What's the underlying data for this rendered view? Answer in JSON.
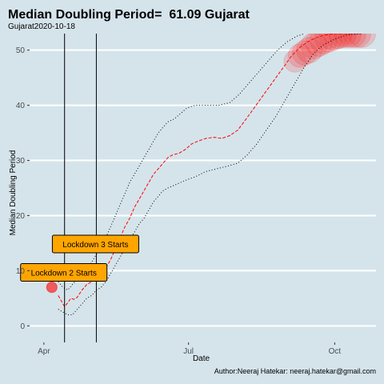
{
  "chart_data": {
    "type": "line",
    "title_prefix": "Median Doubling Period=",
    "title_value": "61.09",
    "title_region": "Gujarat",
    "subtitle": "Gujarat2020-10-18",
    "xlabel": "Date",
    "ylabel": "Median Doubling Period",
    "caption": "Author:Neeraj Hatekar: neeraj.hatekar@gmail.com",
    "x_ticks": [
      {
        "label": "Apr",
        "date": "2020-04-01"
      },
      {
        "label": "Jul",
        "date": "2020-07-01"
      },
      {
        "label": "Oct",
        "date": "2020-10-01"
      }
    ],
    "y_ticks": [
      0,
      10,
      20,
      30,
      40,
      50
    ],
    "x_range": [
      "2020-03-23",
      "2020-10-27"
    ],
    "ylim": [
      -3,
      53
    ],
    "grid": "horizontal",
    "legend": "none",
    "colors": {
      "background": "#d5e4eb",
      "median_line": "#ff0000",
      "bounds": "#000000",
      "annotation_fill": "#ffa500"
    },
    "vlines": [
      {
        "date": "2020-04-14",
        "label": "Lockdown 2 Starts"
      },
      {
        "date": "2020-05-04",
        "label": "Lockdown 3 Starts"
      }
    ],
    "series": [
      {
        "style": "dashed-red",
        "points": [
          [
            "2020-04-10",
            5.5
          ],
          [
            "2020-04-12",
            4.5
          ],
          [
            "2020-04-14",
            3.5
          ],
          [
            "2020-04-16",
            4.2
          ],
          [
            "2020-04-18",
            5.0
          ],
          [
            "2020-04-20",
            4.8
          ],
          [
            "2020-04-22",
            5.2
          ],
          [
            "2020-04-25",
            6.5
          ],
          [
            "2020-04-28",
            7.5
          ],
          [
            "2020-05-01",
            8.0
          ],
          [
            "2020-05-04",
            8.5
          ],
          [
            "2020-05-07",
            9.5
          ],
          [
            "2020-05-10",
            10.5
          ],
          [
            "2020-05-13",
            12.0
          ],
          [
            "2020-05-16",
            14.0
          ],
          [
            "2020-05-19",
            16.0
          ],
          [
            "2020-05-22",
            18.0
          ],
          [
            "2020-05-25",
            19.5
          ],
          [
            "2020-05-28",
            21.5
          ],
          [
            "2020-05-31",
            23.0
          ],
          [
            "2020-06-03",
            24.5
          ],
          [
            "2020-06-06",
            26.0
          ],
          [
            "2020-06-09",
            27.5
          ],
          [
            "2020-06-12",
            28.5
          ],
          [
            "2020-06-15",
            29.5
          ],
          [
            "2020-06-18",
            30.5
          ],
          [
            "2020-06-21",
            31.0
          ],
          [
            "2020-06-25",
            31.3
          ],
          [
            "2020-06-29",
            32.0
          ],
          [
            "2020-07-03",
            33.0
          ],
          [
            "2020-07-07",
            33.5
          ],
          [
            "2020-07-12",
            34.0
          ],
          [
            "2020-07-17",
            34.2
          ],
          [
            "2020-07-22",
            34.0
          ],
          [
            "2020-07-27",
            34.5
          ],
          [
            "2020-08-01",
            35.5
          ],
          [
            "2020-08-05",
            37.0
          ],
          [
            "2020-08-10",
            39.0
          ],
          [
            "2020-08-15",
            41.0
          ],
          [
            "2020-08-20",
            43.0
          ],
          [
            "2020-08-25",
            45.0
          ],
          [
            "2020-08-30",
            47.0
          ],
          [
            "2020-09-04",
            49.0
          ],
          [
            "2020-09-09",
            50.5
          ],
          [
            "2020-09-14",
            51.5
          ],
          [
            "2020-09-19",
            52.2
          ],
          [
            "2020-09-24",
            52.7
          ],
          [
            "2020-10-01",
            53.0
          ],
          [
            "2020-10-09",
            53.0
          ],
          [
            "2020-10-18",
            53.0
          ]
        ]
      },
      {
        "style": "dotted-black",
        "points": [
          [
            "2020-04-10",
            8.0
          ],
          [
            "2020-04-13",
            7.0
          ],
          [
            "2020-04-16",
            6.5
          ],
          [
            "2020-04-19",
            7.5
          ],
          [
            "2020-04-22",
            8.5
          ],
          [
            "2020-04-25",
            9.5
          ],
          [
            "2020-04-28",
            10.5
          ],
          [
            "2020-05-01",
            11.5
          ],
          [
            "2020-05-04",
            13.0
          ],
          [
            "2020-05-07",
            14.0
          ],
          [
            "2020-05-10",
            16.0
          ],
          [
            "2020-05-13",
            18.0
          ],
          [
            "2020-05-16",
            20.0
          ],
          [
            "2020-05-19",
            22.0
          ],
          [
            "2020-05-22",
            24.0
          ],
          [
            "2020-05-25",
            26.0
          ],
          [
            "2020-05-28",
            27.5
          ],
          [
            "2020-05-31",
            29.0
          ],
          [
            "2020-06-03",
            30.5
          ],
          [
            "2020-06-06",
            32.0
          ],
          [
            "2020-06-09",
            33.5
          ],
          [
            "2020-06-12",
            35.0
          ],
          [
            "2020-06-15",
            36.0
          ],
          [
            "2020-06-18",
            37.0
          ],
          [
            "2020-06-22",
            37.5
          ],
          [
            "2020-06-26",
            38.5
          ],
          [
            "2020-06-30",
            39.5
          ],
          [
            "2020-07-05",
            40.0
          ],
          [
            "2020-07-12",
            40.0
          ],
          [
            "2020-07-20",
            40.0
          ],
          [
            "2020-07-27",
            40.5
          ],
          [
            "2020-08-02",
            42.0
          ],
          [
            "2020-08-08",
            44.0
          ],
          [
            "2020-08-14",
            46.0
          ],
          [
            "2020-08-20",
            48.0
          ],
          [
            "2020-08-26",
            50.0
          ],
          [
            "2020-09-01",
            51.5
          ],
          [
            "2020-09-07",
            52.5
          ],
          [
            "2020-09-12",
            53.0
          ]
        ]
      },
      {
        "style": "dotted-black",
        "points": [
          [
            "2020-04-10",
            3.0
          ],
          [
            "2020-04-13",
            2.5
          ],
          [
            "2020-04-16",
            2.0
          ],
          [
            "2020-04-19",
            2.0
          ],
          [
            "2020-04-22",
            3.0
          ],
          [
            "2020-04-25",
            4.0
          ],
          [
            "2020-04-28",
            5.0
          ],
          [
            "2020-05-01",
            5.5
          ],
          [
            "2020-05-04",
            6.5
          ],
          [
            "2020-05-07",
            7.0
          ],
          [
            "2020-05-10",
            8.0
          ],
          [
            "2020-05-13",
            9.5
          ],
          [
            "2020-05-16",
            11.0
          ],
          [
            "2020-05-19",
            12.5
          ],
          [
            "2020-05-22",
            14.0
          ],
          [
            "2020-05-25",
            15.5
          ],
          [
            "2020-05-28",
            17.0
          ],
          [
            "2020-05-31",
            18.5
          ],
          [
            "2020-06-03",
            19.5
          ],
          [
            "2020-06-06",
            21.0
          ],
          [
            "2020-06-09",
            22.5
          ],
          [
            "2020-06-12",
            23.5
          ],
          [
            "2020-06-15",
            24.5
          ],
          [
            "2020-06-18",
            25.0
          ],
          [
            "2020-06-22",
            25.5
          ],
          [
            "2020-06-26",
            26.0
          ],
          [
            "2020-06-30",
            26.5
          ],
          [
            "2020-07-05",
            27.0
          ],
          [
            "2020-07-12",
            28.0
          ],
          [
            "2020-07-19",
            28.5
          ],
          [
            "2020-07-26",
            29.0
          ],
          [
            "2020-08-01",
            29.5
          ],
          [
            "2020-08-07",
            31.0
          ],
          [
            "2020-08-13",
            33.0
          ],
          [
            "2020-08-19",
            35.5
          ],
          [
            "2020-08-25",
            38.0
          ],
          [
            "2020-08-31",
            41.0
          ],
          [
            "2020-09-06",
            44.0
          ],
          [
            "2020-09-12",
            47.0
          ],
          [
            "2020-09-18",
            49.5
          ],
          [
            "2020-09-24",
            51.0
          ],
          [
            "2020-10-01",
            52.0
          ],
          [
            "2020-10-09",
            52.8
          ],
          [
            "2020-10-18",
            53.0
          ]
        ]
      }
    ],
    "bubbles": [
      {
        "date": "2020-04-06",
        "value": 7.0,
        "size": 1,
        "opacity": 0.6
      },
      {
        "date": "2020-09-06",
        "value": 48.0,
        "size": 3,
        "opacity": 0.15
      },
      {
        "date": "2020-09-09",
        "value": 49.0,
        "size": 3.2,
        "opacity": 0.15
      },
      {
        "date": "2020-09-12",
        "value": 49.5,
        "size": 3.4,
        "opacity": 0.15
      },
      {
        "date": "2020-09-15",
        "value": 50.0,
        "size": 3.6,
        "opacity": 0.15
      },
      {
        "date": "2020-09-18",
        "value": 50.8,
        "size": 3.7,
        "opacity": 0.15
      },
      {
        "date": "2020-09-21",
        "value": 51.3,
        "size": 3.8,
        "opacity": 0.15
      },
      {
        "date": "2020-09-24",
        "value": 51.8,
        "size": 3.9,
        "opacity": 0.15
      },
      {
        "date": "2020-09-27",
        "value": 52.2,
        "size": 4,
        "opacity": 0.15
      },
      {
        "date": "2020-09-30",
        "value": 52.5,
        "size": 4,
        "opacity": 0.15
      },
      {
        "date": "2020-10-03",
        "value": 52.8,
        "size": 4,
        "opacity": 0.15
      },
      {
        "date": "2020-10-06",
        "value": 53.0,
        "size": 4,
        "opacity": 0.15
      },
      {
        "date": "2020-10-09",
        "value": 53.0,
        "size": 4,
        "opacity": 0.15
      },
      {
        "date": "2020-10-12",
        "value": 53.0,
        "size": 4,
        "opacity": 0.15
      },
      {
        "date": "2020-10-15",
        "value": 53.0,
        "size": 4,
        "opacity": 0.15
      },
      {
        "date": "2020-10-18",
        "value": 53.0,
        "size": 4,
        "opacity": 0.15
      }
    ]
  }
}
